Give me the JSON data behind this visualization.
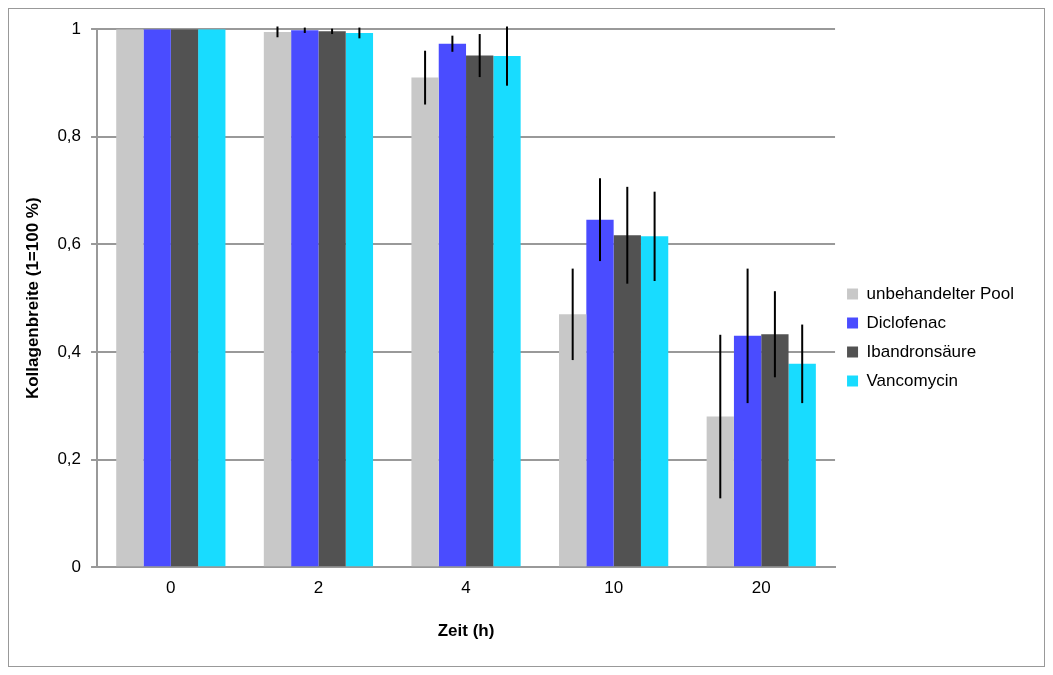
{
  "chart_data": {
    "type": "bar",
    "xlabel": "Zeit (h)",
    "ylabel": "Kollagenbreite (1=100 %)",
    "categories": [
      "0",
      "2",
      "4",
      "10",
      "20"
    ],
    "series": [
      {
        "name": "unbehandelter Pool",
        "color": "#c8c8c8",
        "values": [
          1,
          0.995,
          0.91,
          0.47,
          0.28
        ],
        "errors": [
          null,
          0.01,
          0.05,
          0.085,
          0.152
        ]
      },
      {
        "name": "Diclofenac",
        "color": "#4a4cff",
        "values": [
          1,
          0.998,
          0.973,
          0.646,
          0.43
        ],
        "errors": [
          null,
          0.005,
          0.015,
          0.077,
          0.125
        ]
      },
      {
        "name": "Ibandronsäure",
        "color": "#525252",
        "values": [
          1,
          0.996,
          0.951,
          0.617,
          0.433
        ],
        "errors": [
          null,
          0.005,
          0.04,
          0.09,
          0.08
        ]
      },
      {
        "name": "Vancomycin",
        "color": "#18dcff",
        "values": [
          1,
          0.993,
          0.95,
          0.615,
          0.378
        ],
        "errors": [
          null,
          0.01,
          0.055,
          0.083,
          0.073
        ]
      }
    ],
    "ylim": [
      0,
      1
    ],
    "yticks": [
      0,
      {
        "value": 0.2,
        "label": "0,2"
      },
      {
        "value": 0.4,
        "label": "0,4"
      },
      {
        "value": 0.6,
        "label": "0,6"
      },
      {
        "value": 0.8,
        "label": "0,8"
      },
      1
    ],
    "grid": "y",
    "legend": "right"
  }
}
